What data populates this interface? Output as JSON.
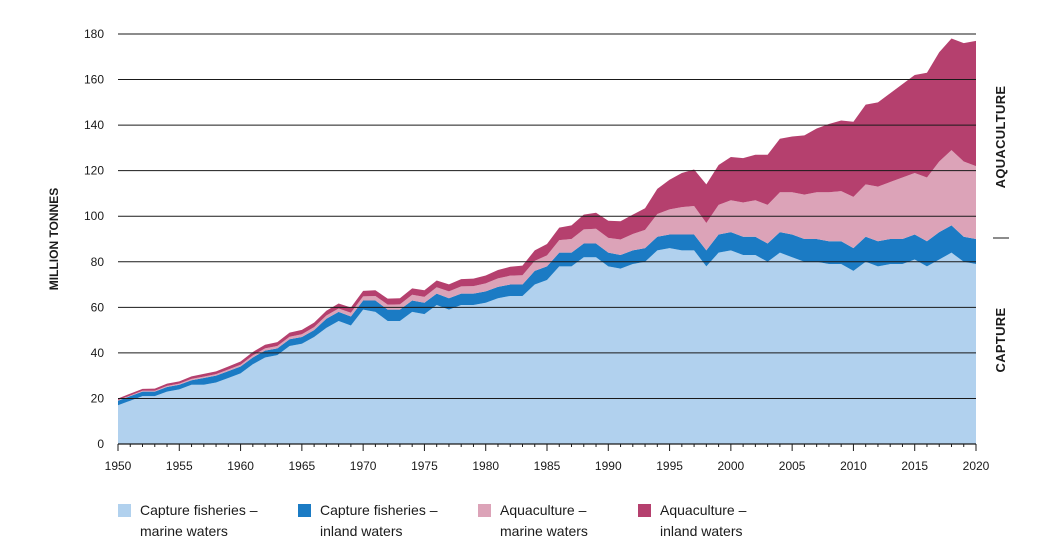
{
  "chart_data": {
    "type": "area",
    "stacked": true,
    "ylabel": "MILLION TONNES",
    "ylim": [
      0,
      180
    ],
    "yticks": [
      "0",
      "20",
      "40",
      "60",
      "80",
      "100",
      "120",
      "140",
      "160",
      "180"
    ],
    "xlim": [
      1950,
      2020
    ],
    "xticks": [
      "1950",
      "1955",
      "1960",
      "1965",
      "1970",
      "1975",
      "1980",
      "1985",
      "1990",
      "1995",
      "2000",
      "2005",
      "2010",
      "2015",
      "2020"
    ],
    "grid": true,
    "legend_position": "bottom",
    "side_labels": {
      "upper": "AQUACULTURE",
      "lower": "CAPTURE"
    },
    "x": [
      1950,
      1951,
      1952,
      1953,
      1954,
      1955,
      1956,
      1957,
      1958,
      1959,
      1960,
      1961,
      1962,
      1963,
      1964,
      1965,
      1966,
      1967,
      1968,
      1969,
      1970,
      1971,
      1972,
      1973,
      1974,
      1975,
      1976,
      1977,
      1978,
      1979,
      1980,
      1981,
      1982,
      1983,
      1984,
      1985,
      1986,
      1987,
      1988,
      1989,
      1990,
      1991,
      1992,
      1993,
      1994,
      1995,
      1996,
      1997,
      1998,
      1999,
      2000,
      2001,
      2002,
      2003,
      2004,
      2005,
      2006,
      2007,
      2008,
      2009,
      2010,
      2011,
      2012,
      2013,
      2014,
      2015,
      2016,
      2017,
      2018,
      2019,
      2020
    ],
    "series": [
      {
        "name": "Capture fisheries – marine waters",
        "color": "#b1d1ee",
        "values": [
          17,
          19,
          21,
          21,
          23,
          24,
          26,
          26,
          27,
          29,
          31,
          35,
          38,
          39,
          43,
          44,
          47,
          51,
          54,
          52,
          59,
          58,
          54,
          54,
          58,
          57,
          61,
          59,
          61,
          61,
          62,
          64,
          65,
          65,
          70,
          72,
          78,
          78,
          82,
          82,
          78,
          77,
          79,
          80,
          85,
          86,
          85,
          85,
          78,
          84,
          85,
          83,
          83,
          80,
          84,
          82,
          80,
          80,
          79,
          79,
          76,
          80,
          78,
          79,
          79,
          81,
          78,
          81,
          84,
          80,
          79
        ],
        "values_label": ""
      },
      {
        "name": "Capture fisheries – inland waters",
        "color": "#1b7bc4",
        "values": [
          2,
          2,
          2,
          2,
          2,
          2,
          2,
          3,
          3,
          3,
          3,
          3,
          3,
          3,
          3,
          3,
          3,
          4,
          4,
          4,
          4,
          5,
          5,
          5,
          5,
          5,
          5,
          5,
          5,
          5,
          5,
          5,
          5,
          5,
          6,
          6,
          6,
          6,
          6,
          6,
          6,
          6,
          6,
          6,
          6,
          6,
          7,
          7,
          7,
          8,
          8,
          8,
          8,
          8,
          9,
          10,
          10,
          10,
          10,
          10,
          10,
          11,
          11,
          11,
          11,
          11,
          11,
          12,
          12,
          11,
          11
        ]
      },
      {
        "name": "Aquaculture – marine waters",
        "color": "#dca3b8",
        "values": [
          0.3,
          0.3,
          0.4,
          0.4,
          0.5,
          0.5,
          0.6,
          0.6,
          0.7,
          0.7,
          0.8,
          0.9,
          1,
          1,
          1.1,
          1.2,
          1.3,
          1.4,
          1.5,
          1.6,
          1.8,
          2,
          2.2,
          2.3,
          2.5,
          2.6,
          2.8,
          3,
          3.2,
          3.3,
          3.5,
          3.7,
          3.9,
          4.1,
          4.4,
          4.8,
          5.5,
          6,
          6.2,
          6.5,
          6.5,
          6.8,
          7.2,
          8,
          10,
          11,
          12,
          12.5,
          12,
          13,
          14,
          15,
          16,
          17,
          17.5,
          18.5,
          19.5,
          20.5,
          21.5,
          22,
          22.5,
          23,
          24,
          25,
          27,
          27,
          28,
          31,
          33,
          33,
          32
        ]
      },
      {
        "name": "Aquaculture – inland waters",
        "color": "#b5406e",
        "values": [
          0.7,
          0.8,
          0.8,
          0.9,
          1,
          1,
          1.1,
          1.2,
          1.2,
          1.3,
          1.4,
          1.5,
          1.6,
          1.7,
          1.8,
          1.9,
          2,
          2.1,
          2.2,
          2.3,
          2.4,
          2.5,
          2.6,
          2.7,
          2.8,
          2.9,
          3,
          3.1,
          3.2,
          3.3,
          3.5,
          3.7,
          3.9,
          4.2,
          4.6,
          5,
          5.5,
          6,
          6.5,
          7,
          7.5,
          8,
          8.5,
          9.5,
          11,
          13,
          15,
          16,
          17,
          17.5,
          19,
          19.5,
          20,
          22,
          23.5,
          24.5,
          26,
          28,
          30,
          31,
          33,
          35,
          37,
          39,
          41,
          43,
          46,
          48,
          49,
          52,
          55
        ]
      }
    ]
  },
  "legend": {
    "items": [
      {
        "label": "Capture fisheries –\nmarine waters",
        "color": "#b1d1ee"
      },
      {
        "label": "Capture fisheries –\ninland waters",
        "color": "#1b7bc4"
      },
      {
        "label": "Aquaculture –\nmarine waters",
        "color": "#dca3b8"
      },
      {
        "label": "Aquaculture –\ninland waters",
        "color": "#b5406e"
      }
    ]
  }
}
